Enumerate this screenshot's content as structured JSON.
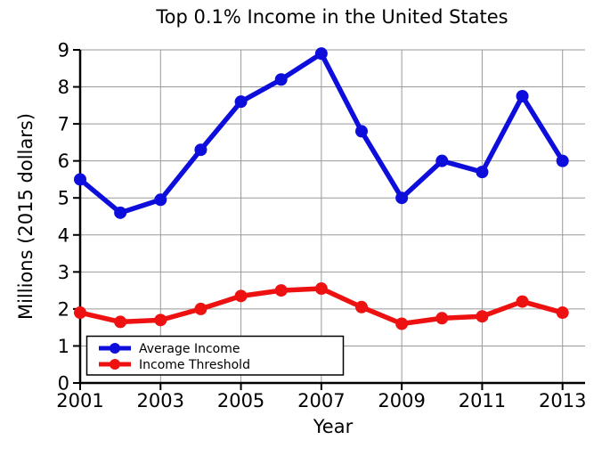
{
  "chart_data": {
    "type": "line",
    "title": "Top 0.1% Income in the United States",
    "xlabel": "Year",
    "ylabel": "Millions (2015 dollars)",
    "x": [
      2001,
      2002,
      2003,
      2004,
      2005,
      2006,
      2007,
      2008,
      2009,
      2010,
      2011,
      2012,
      2013
    ],
    "series": [
      {
        "name": "Average Income",
        "color": "#0E0EDC",
        "marker": "circle",
        "values": [
          5.5,
          4.6,
          4.95,
          6.3,
          7.6,
          8.2,
          8.9,
          6.8,
          5.0,
          6.0,
          5.7,
          7.75,
          6.0
        ]
      },
      {
        "name": "Income Threshold",
        "color": "#EE1111",
        "marker": "circle",
        "values": [
          1.9,
          1.65,
          1.7,
          2.0,
          2.35,
          2.5,
          2.55,
          2.05,
          1.6,
          1.75,
          1.8,
          2.2,
          1.9
        ]
      }
    ],
    "xlim": [
      2001,
      2013.56
    ],
    "ylim": [
      0,
      9
    ],
    "xticks": [
      2001,
      2003,
      2005,
      2007,
      2009,
      2011,
      2013
    ],
    "yticks": [
      0,
      1,
      2,
      3,
      4,
      5,
      6,
      7,
      8,
      9
    ],
    "grid": true,
    "grid_color": "#999999",
    "axis_color": "#000000",
    "legend_position": "lower left"
  }
}
